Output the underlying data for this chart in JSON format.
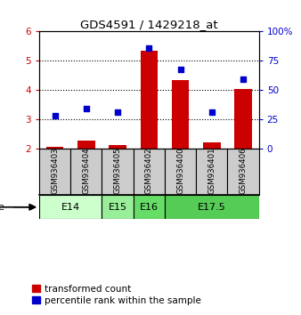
{
  "title": "GDS4591 / 1429218_at",
  "samples": [
    "GSM936403",
    "GSM936404",
    "GSM936405",
    "GSM936402",
    "GSM936400",
    "GSM936401",
    "GSM936406"
  ],
  "transformed_counts": [
    2.05,
    2.28,
    2.12,
    5.35,
    4.33,
    2.22,
    4.02
  ],
  "percentile_ranks": [
    3.13,
    3.38,
    3.25,
    5.42,
    4.71,
    3.25,
    4.38
  ],
  "age_groups": [
    {
      "label": "E14",
      "start": 0,
      "end": 2,
      "color": "#ccffcc"
    },
    {
      "label": "E15",
      "start": 2,
      "end": 3,
      "color": "#99ee99"
    },
    {
      "label": "E16",
      "start": 3,
      "end": 4,
      "color": "#66dd66"
    },
    {
      "label": "E17.5",
      "start": 4,
      "end": 7,
      "color": "#55cc55"
    }
  ],
  "ylim_left": [
    2,
    6
  ],
  "ylim_right": [
    0,
    100
  ],
  "yticks_left": [
    2,
    3,
    4,
    5,
    6
  ],
  "yticks_right": [
    0,
    25,
    50,
    75,
    100
  ],
  "bar_color": "#cc0000",
  "scatter_color": "#0000cc",
  "bar_width": 0.55,
  "bar_bottom": 2.0,
  "legend_red": "transformed count",
  "legend_blue": "percentile rank within the sample",
  "sample_box_color": "#cccccc",
  "fig_width": 3.38,
  "fig_height": 3.54,
  "dpi": 100
}
